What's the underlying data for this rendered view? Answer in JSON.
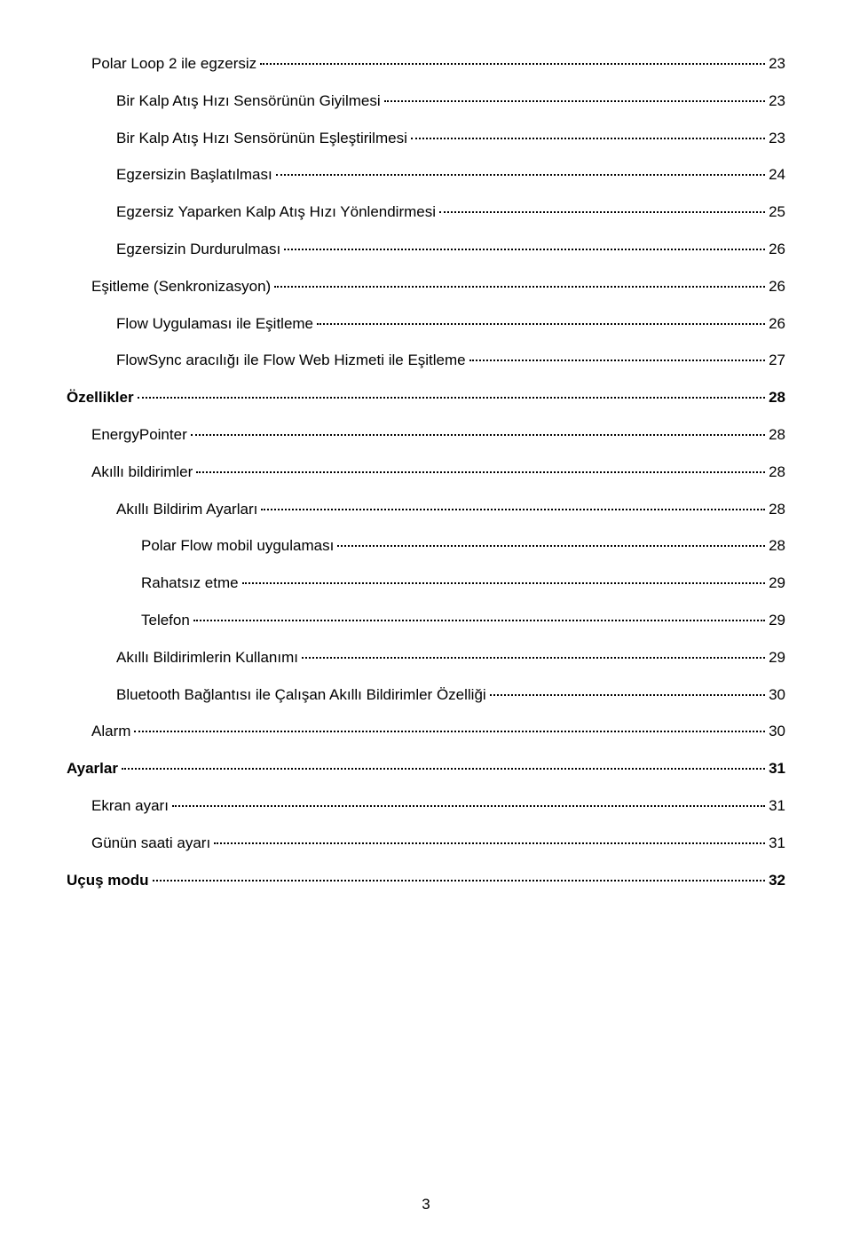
{
  "toc": {
    "entries": [
      {
        "label": "Polar Loop 2 ile egzersiz",
        "page": "23",
        "indent": 1,
        "bold": false
      },
      {
        "label": "Bir Kalp Atış Hızı Sensörünün Giyilmesi",
        "page": "23",
        "indent": 2,
        "bold": false
      },
      {
        "label": "Bir Kalp Atış Hızı Sensörünün Eşleştirilmesi",
        "page": "23",
        "indent": 2,
        "bold": false
      },
      {
        "label": "Egzersizin Başlatılması",
        "page": "24",
        "indent": 2,
        "bold": false
      },
      {
        "label": "Egzersiz Yaparken Kalp Atış Hızı Yönlendirmesi",
        "page": "25",
        "indent": 2,
        "bold": false
      },
      {
        "label": "Egzersizin Durdurulması",
        "page": "26",
        "indent": 2,
        "bold": false
      },
      {
        "label": "Eşitleme (Senkronizasyon)",
        "page": "26",
        "indent": 1,
        "bold": false
      },
      {
        "label": "Flow Uygulaması ile Eşitleme",
        "page": "26",
        "indent": 2,
        "bold": false
      },
      {
        "label": "FlowSync aracılığı ile Flow Web Hizmeti ile Eşitleme",
        "page": "27",
        "indent": 2,
        "bold": false
      },
      {
        "label": "Özellikler",
        "page": "28",
        "indent": 0,
        "bold": true
      },
      {
        "label": "EnergyPointer",
        "page": "28",
        "indent": 1,
        "bold": false
      },
      {
        "label": "Akıllı bildirimler",
        "page": "28",
        "indent": 1,
        "bold": false
      },
      {
        "label": "Akıllı Bildirim Ayarları",
        "page": "28",
        "indent": 2,
        "bold": false
      },
      {
        "label": "Polar Flow mobil uygulaması",
        "page": "28",
        "indent": 3,
        "bold": false
      },
      {
        "label": "Rahatsız etme",
        "page": "29",
        "indent": 3,
        "bold": false
      },
      {
        "label": "Telefon",
        "page": "29",
        "indent": 3,
        "bold": false
      },
      {
        "label": "Akıllı Bildirimlerin Kullanımı",
        "page": "29",
        "indent": 2,
        "bold": false
      },
      {
        "label": "Bluetooth Bağlantısı ile Çalışan Akıllı Bildirimler Özelliği",
        "page": "30",
        "indent": 2,
        "bold": false
      },
      {
        "label": "Alarm",
        "page": "30",
        "indent": 1,
        "bold": false
      },
      {
        "label": "Ayarlar",
        "page": "31",
        "indent": 0,
        "bold": true
      },
      {
        "label": "Ekran ayarı",
        "page": "31",
        "indent": 1,
        "bold": false
      },
      {
        "label": "Günün saati ayarı",
        "page": "31",
        "indent": 1,
        "bold": false
      },
      {
        "label": "Uçuş modu",
        "page": "32",
        "indent": 0,
        "bold": true
      }
    ]
  },
  "pageNumber": "3"
}
